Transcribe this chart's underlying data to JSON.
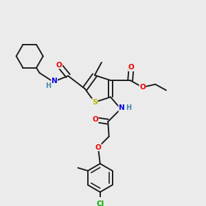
{
  "bg_color": "#ebebeb",
  "bond_color": "#1a1a1a",
  "bond_width": 1.4,
  "atom_colors": {
    "S": "#b8b800",
    "N": "#0000ee",
    "O": "#ee0000",
    "Cl": "#00aa00",
    "H": "#4488aa",
    "C": "#1a1a1a"
  },
  "font_size": 7.5
}
